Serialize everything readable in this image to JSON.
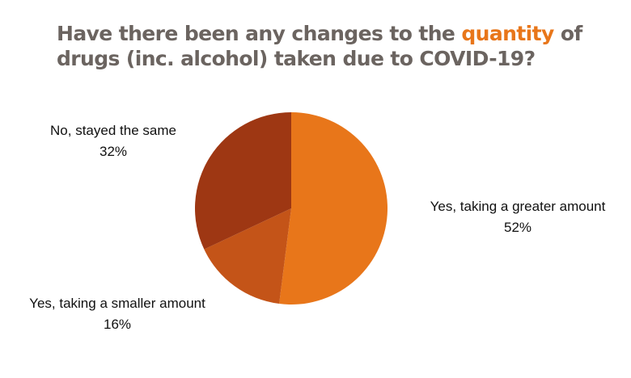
{
  "title": {
    "part1": "Have there been any changes to the ",
    "highlight": "quantity",
    "part2": " of drugs (inc. alcohol) taken due to COVID-19?"
  },
  "colors": {
    "title_text": "#6b6460",
    "highlight": "#e8761a"
  },
  "chart_data": {
    "type": "pie",
    "slices": [
      {
        "label": "Yes, taking a greater amount",
        "value": 52,
        "value_label": "52%",
        "color": "#e8761a"
      },
      {
        "label": "Yes, taking a smaller amount",
        "value": 16,
        "value_label": "16%",
        "color": "#c45418"
      },
      {
        "label": "No, stayed the same",
        "value": 32,
        "value_label": "32%",
        "color": "#9e3713"
      }
    ],
    "start_angle": "12 o'clock",
    "direction": "clockwise",
    "legend": "none (labels beside slices)"
  }
}
